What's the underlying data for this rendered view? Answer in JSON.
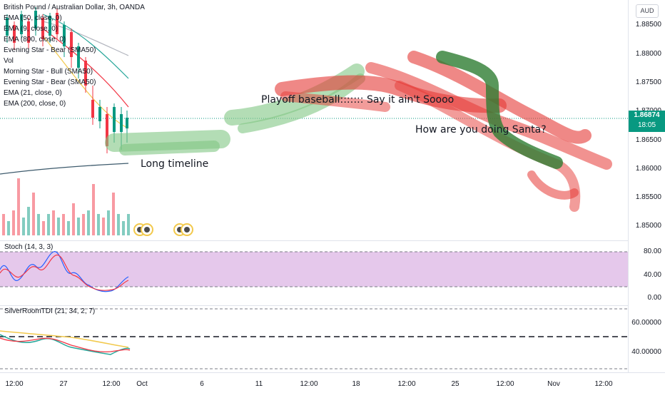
{
  "symbol": {
    "title": "British Pound / Australian Dollar, 3h, OANDA",
    "currency": "AUD"
  },
  "indicators": [
    "EMA (50, close, 0)",
    "EMA (9, close, 0)",
    "EMA (800, close, 0)",
    "Evening Star - Bear (SMA50)",
    "Vol",
    "Morning Star - Bull (SMA50)",
    "Evening Star - Bear (SMA50)",
    "EMA (21, close, 0)",
    "EMA (200, close, 0)"
  ],
  "price_scale": [
    "1.88500",
    "1.88000",
    "1.87500",
    "1.87000",
    "1.86500",
    "1.86000",
    "1.85500",
    "1.85000"
  ],
  "last_price": {
    "value": "1.86874",
    "countdown": "18:05",
    "color": "#089981"
  },
  "annotations": {
    "long_timeline": "Long timeline",
    "playoff": "Playoff baseball::::::: Say it ain't Soooo",
    "santa": "How are you doing Santa?"
  },
  "stoch": {
    "title": "Stoch (14, 3, 3)",
    "scale": [
      "80.00",
      "40.00",
      "0.00"
    ],
    "band_color": "#e1bee7"
  },
  "tdi": {
    "title": "SilverRoomTDI (21, 34, 2, 7)",
    "scale": [
      "60.00000",
      "40.00000"
    ]
  },
  "time_axis": [
    "12:00",
    "27",
    "12:00",
    "Oct",
    "6",
    "11",
    "12:00",
    "18",
    "12:00",
    "25",
    "12:00",
    "Nov",
    "12:00"
  ],
  "colors": {
    "green_stroke": "#81c784",
    "red_stroke": "#e53935",
    "dark_green_stroke": "#2e7d32",
    "up": "#089981",
    "down": "#f23645"
  }
}
